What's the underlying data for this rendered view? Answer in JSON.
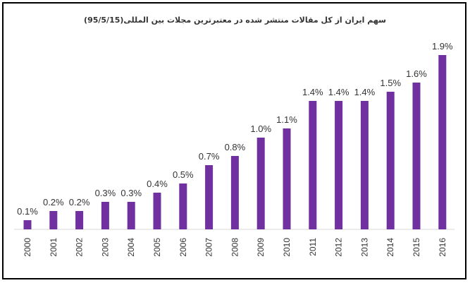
{
  "chart_data": {
    "type": "bar",
    "title": "سهم ایران از کل مقالات منتشر شده در معتبرترین مجلات بین المللی(95/5/15)",
    "xlabel": "",
    "ylabel": "",
    "categories": [
      "2000",
      "2001",
      "2002",
      "2003",
      "2004",
      "2005",
      "2006",
      "2007",
      "2008",
      "2009",
      "2010",
      "2011",
      "2012",
      "2013",
      "2014",
      "2015",
      "2016"
    ],
    "values": [
      0.1,
      0.2,
      0.2,
      0.3,
      0.3,
      0.4,
      0.5,
      0.7,
      0.8,
      1.0,
      1.1,
      1.4,
      1.4,
      1.4,
      1.5,
      1.6,
      1.9
    ],
    "data_labels": [
      "0.1%",
      "0.2%",
      "0.2%",
      "0.3%",
      "0.3%",
      "0.4%",
      "0.5%",
      "0.7%",
      "0.8%",
      "1.0%",
      "1.1%",
      "1.4%",
      "1.4%",
      "1.4%",
      "1.5%",
      "1.6%",
      "1.9%"
    ],
    "ylim": [
      0,
      1.9
    ],
    "grid": false,
    "legend": "none",
    "bar_color": "#7030A0"
  }
}
